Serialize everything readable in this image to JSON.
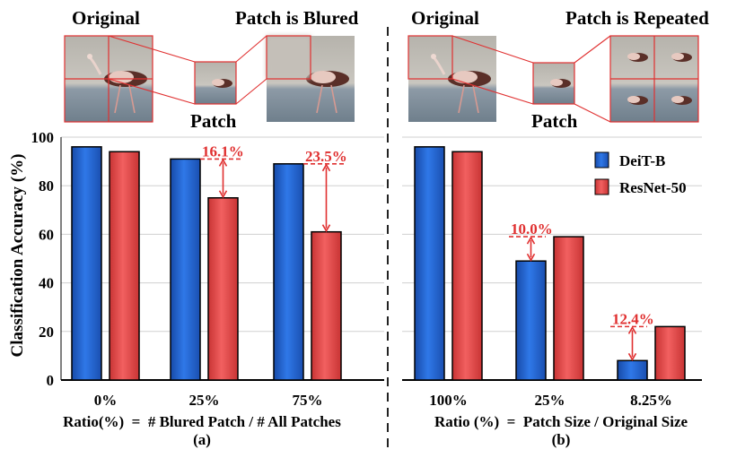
{
  "top_labels": {
    "left_original": "Original",
    "left_patch_title": "Patch is Blured",
    "left_patch": "Patch",
    "right_original": "Original",
    "right_patch_title": "Patch is Repeated",
    "right_patch": "Patch"
  },
  "legend": {
    "deit": "DeiT-B",
    "resnet": "ResNet-50"
  },
  "colors": {
    "deit": "#1f5fd0",
    "resnet": "#e84848",
    "annotation": "#e03030",
    "divider": "#222222"
  },
  "ylabel": "Classification  Accuracy (%)",
  "chart_data": [
    {
      "type": "bar",
      "panel": "(a)",
      "categories": [
        "0%",
        "25%",
        "75%"
      ],
      "series": [
        {
          "name": "DeiT-B",
          "values": [
            96,
            91,
            89
          ]
        },
        {
          "name": "ResNet-50",
          "values": [
            94,
            75,
            61
          ]
        }
      ],
      "ylim": [
        0,
        100
      ],
      "yticks": [
        0,
        20,
        40,
        60,
        80,
        100
      ],
      "xlabel": "Ratio(%)  =  # Blured Patch / # All Patches",
      "annotations": [
        {
          "category_index": 1,
          "text": "16.1%"
        },
        {
          "category_index": 2,
          "text": "23.5%"
        }
      ],
      "grid": true
    },
    {
      "type": "bar",
      "panel": "(b)",
      "categories": [
        "100%",
        "25%",
        "8.25%"
      ],
      "series": [
        {
          "name": "DeiT-B",
          "values": [
            96,
            49,
            8
          ]
        },
        {
          "name": "ResNet-50",
          "values": [
            94,
            59,
            22
          ]
        }
      ],
      "ylim": [
        0,
        100
      ],
      "yticks": [
        0,
        20,
        40,
        60,
        80,
        100
      ],
      "xlabel": "Ratio (%)  =  Patch Size / Original Size",
      "annotations": [
        {
          "category_index": 1,
          "text": "10.0%"
        },
        {
          "category_index": 2,
          "text": "12.4%"
        }
      ],
      "grid": true
    }
  ]
}
